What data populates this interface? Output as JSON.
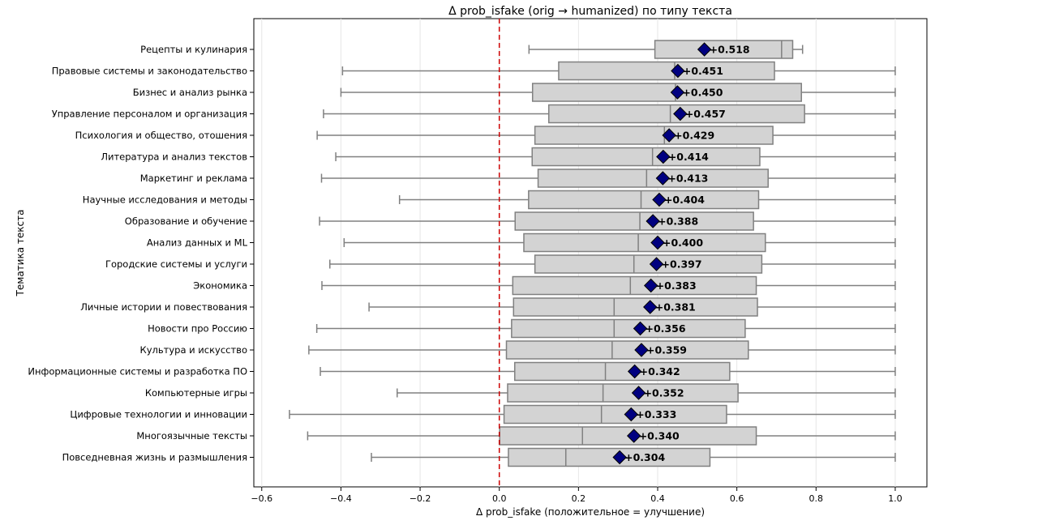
{
  "chart_data": {
    "type": "boxplot",
    "title": "Δ prob_isfake (orig → humanized) по типу текста",
    "xlabel": "Δ prob_isfake (положительное = улучшение)",
    "ylabel": "Тематика текста",
    "xlim": [
      -0.62,
      1.08
    ],
    "xticks": [
      -0.6,
      -0.4,
      -0.2,
      0.0,
      0.2,
      0.4,
      0.6,
      0.8,
      1.0
    ],
    "xtick_labels": [
      "−0.6",
      "−0.4",
      "−0.2",
      "0.0",
      "0.2",
      "0.4",
      "0.6",
      "0.8",
      "1.0"
    ],
    "reference_line": {
      "x": 0.0,
      "style": "dashed",
      "color": "#cc0000"
    },
    "grid": "vertical",
    "colors": {
      "box": "#d3d3d3",
      "box_edge": "#808080",
      "mean_marker": "#000080"
    },
    "categories": [
      {
        "label": "Рецепты и кулинария",
        "whisker_low": 0.075,
        "q1": 0.393,
        "median": 0.713,
        "q3": 0.741,
        "whisker_high": 0.766,
        "mean": 0.518,
        "mean_label": "+0.518"
      },
      {
        "label": "Правовые системы и законодательство",
        "whisker_low": -0.396,
        "q1": 0.15,
        "median": 0.443,
        "q3": 0.695,
        "whisker_high": 1.0,
        "mean": 0.451,
        "mean_label": "+0.451"
      },
      {
        "label": "Бизнес и анализ рынка",
        "whisker_low": -0.4,
        "q1": 0.084,
        "median": 0.445,
        "q3": 0.763,
        "whisker_high": 1.0,
        "mean": 0.45,
        "mean_label": "+0.450"
      },
      {
        "label": "Управление персоналом и организация",
        "whisker_low": -0.444,
        "q1": 0.125,
        "median": 0.432,
        "q3": 0.771,
        "whisker_high": 1.0,
        "mean": 0.457,
        "mean_label": "+0.457"
      },
      {
        "label": "Психология и общество, отошения",
        "whisker_low": -0.46,
        "q1": 0.09,
        "median": 0.417,
        "q3": 0.691,
        "whisker_high": 1.0,
        "mean": 0.429,
        "mean_label": "+0.429"
      },
      {
        "label": "Литература и анализ текстов",
        "whisker_low": -0.413,
        "q1": 0.083,
        "median": 0.387,
        "q3": 0.658,
        "whisker_high": 1.0,
        "mean": 0.414,
        "mean_label": "+0.414"
      },
      {
        "label": "Маркетинг и реклама",
        "whisker_low": -0.449,
        "q1": 0.098,
        "median": 0.372,
        "q3": 0.679,
        "whisker_high": 1.0,
        "mean": 0.413,
        "mean_label": "+0.413"
      },
      {
        "label": "Научные исследования и методы",
        "whisker_low": -0.252,
        "q1": 0.074,
        "median": 0.358,
        "q3": 0.655,
        "whisker_high": 1.0,
        "mean": 0.404,
        "mean_label": "+0.404"
      },
      {
        "label": "Образование и обучение",
        "whisker_low": -0.454,
        "q1": 0.04,
        "median": 0.355,
        "q3": 0.642,
        "whisker_high": 1.0,
        "mean": 0.388,
        "mean_label": "+0.388"
      },
      {
        "label": "Анализ данных и ML",
        "whisker_low": -0.392,
        "q1": 0.062,
        "median": 0.351,
        "q3": 0.672,
        "whisker_high": 1.0,
        "mean": 0.4,
        "mean_label": "+0.400"
      },
      {
        "label": "Городские системы и услуги",
        "whisker_low": -0.428,
        "q1": 0.09,
        "median": 0.34,
        "q3": 0.663,
        "whisker_high": 1.0,
        "mean": 0.397,
        "mean_label": "+0.397"
      },
      {
        "label": "Экономика",
        "whisker_low": -0.448,
        "q1": 0.034,
        "median": 0.331,
        "q3": 0.649,
        "whisker_high": 1.0,
        "mean": 0.383,
        "mean_label": "+0.383"
      },
      {
        "label": "Личные истории и повествования",
        "whisker_low": -0.329,
        "q1": 0.036,
        "median": 0.29,
        "q3": 0.652,
        "whisker_high": 1.0,
        "mean": 0.381,
        "mean_label": "+0.381"
      },
      {
        "label": "Новости про Россию",
        "whisker_low": -0.461,
        "q1": 0.031,
        "median": 0.29,
        "q3": 0.621,
        "whisker_high": 1.0,
        "mean": 0.356,
        "mean_label": "+0.356"
      },
      {
        "label": "Культура и искусство",
        "whisker_low": -0.481,
        "q1": 0.018,
        "median": 0.285,
        "q3": 0.629,
        "whisker_high": 1.0,
        "mean": 0.359,
        "mean_label": "+0.359"
      },
      {
        "label": "Информационные системы и разработка ПО",
        "whisker_low": -0.452,
        "q1": 0.039,
        "median": 0.268,
        "q3": 0.582,
        "whisker_high": 1.0,
        "mean": 0.342,
        "mean_label": "+0.342"
      },
      {
        "label": "Компьютерные игры",
        "whisker_low": -0.258,
        "q1": 0.021,
        "median": 0.262,
        "q3": 0.603,
        "whisker_high": 1.0,
        "mean": 0.352,
        "mean_label": "+0.352"
      },
      {
        "label": "Цифровые технологии и инновации",
        "whisker_low": -0.53,
        "q1": 0.012,
        "median": 0.258,
        "q3": 0.574,
        "whisker_high": 1.0,
        "mean": 0.333,
        "mean_label": "+0.333"
      },
      {
        "label": "Многоязычные тексты",
        "whisker_low": -0.484,
        "q1": 0.001,
        "median": 0.21,
        "q3": 0.649,
        "whisker_high": 1.0,
        "mean": 0.34,
        "mean_label": "+0.340"
      },
      {
        "label": "Повседневная жизнь и размышления",
        "whisker_low": -0.323,
        "q1": 0.023,
        "median": 0.168,
        "q3": 0.532,
        "whisker_high": 1.0,
        "mean": 0.304,
        "mean_label": "+0.304"
      }
    ]
  }
}
